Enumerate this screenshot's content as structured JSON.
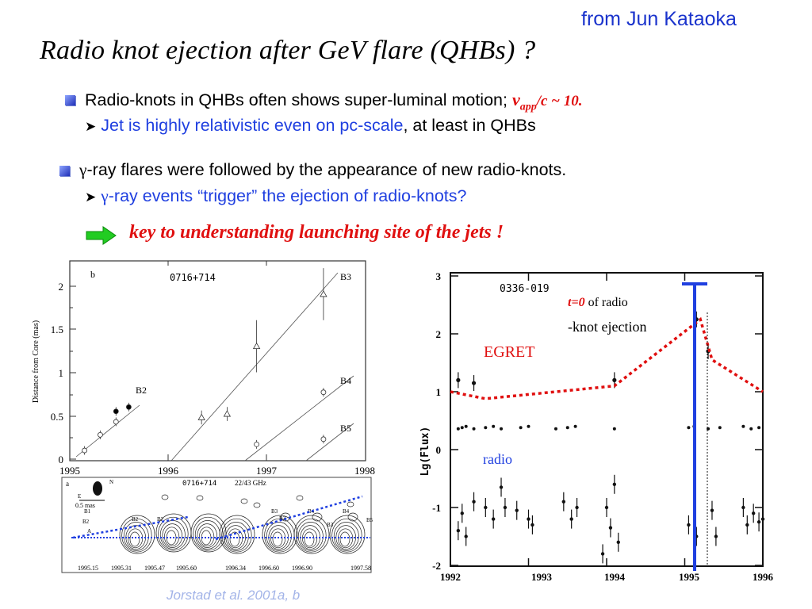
{
  "slide": {
    "credit": "from Jun Kataoka",
    "title": "Radio knot ejection after GeV flare (QHBs) ?",
    "bullet1": {
      "text": "Radio-knots in QHBs often shows super-luminal motion; ",
      "v": "v",
      "sub": "app",
      "tail": "/c ~ 10."
    },
    "sub1": {
      "arrow": "➤",
      "blue": "Jet is highly relativistic even  on pc-scale",
      "rest": ", at least in QHBs"
    },
    "bullet2": {
      "gamma": "γ",
      "text": "-ray flares were followed by the appearance of new radio-knots."
    },
    "sub2": {
      "arrow": "➤",
      "gamma": "γ",
      "text": "-ray events “trigger”  the ejection of radio-knots?"
    },
    "key": "key to understanding launching site of the jets !",
    "citation": "Jorstad et al. 2001a, b"
  },
  "left_plot": {
    "panel_label": "b",
    "source": "0716+714",
    "ylabel": "Distance from Core (mas)",
    "yticks": [
      "0",
      "0.5",
      "1",
      "1.5",
      "2"
    ],
    "xticks": [
      "1995",
      "1996",
      "1997",
      "1998"
    ],
    "knots": [
      "B2",
      "B3",
      "B4",
      "B5"
    ]
  },
  "vlbi_panel": {
    "panel_label": "a",
    "source": "0716+714",
    "freq": "22/43 GHz",
    "beam": "0.5 mas",
    "compass": [
      "N",
      "E"
    ],
    "epochs": [
      "1995.15",
      "1995.31",
      "1995.47",
      "1995.60",
      "1996.34",
      "1996.60",
      "1996.90",
      "1997.58"
    ],
    "labels": [
      "B1",
      "B2",
      "B2",
      "B2",
      "B3",
      "B3",
      "B4",
      "B3",
      "B4",
      "B5",
      "B3",
      "A"
    ]
  },
  "right_plot": {
    "source": "0336-019",
    "ylabel": "Lg(Flux)",
    "yticks": [
      "3",
      "2",
      "1",
      "0",
      "-1",
      "-2"
    ],
    "xticks": [
      "1992",
      "1993",
      "1994",
      "1995",
      "1996"
    ],
    "t0": "t=0",
    "t0_rest": " of radio",
    "knot_ej": "-knot ejection",
    "egret": "EGRET",
    "radio": "radio"
  },
  "colors": {
    "credit_blue": "#1a33cc",
    "red": "#e01010",
    "arrow_green": "#22cc22",
    "marker_blue": "#1f3fe0"
  },
  "chart_data": [
    {
      "type": "scatter",
      "title": "0716+714",
      "xlabel": "",
      "ylabel": "Distance from Core (mas)",
      "xlim": [
        1995,
        1998
      ],
      "ylim": [
        0,
        2.2
      ],
      "series": [
        {
          "name": "B2",
          "points": [
            [
              1995.15,
              0.1
            ],
            [
              1995.31,
              0.28
            ],
            [
              1995.47,
              0.43
            ],
            [
              1995.47,
              0.55
            ],
            [
              1995.6,
              0.6
            ]
          ]
        },
        {
          "name": "B3",
          "points": [
            [
              1996.34,
              0.48
            ],
            [
              1996.6,
              0.52
            ],
            [
              1996.9,
              1.3
            ],
            [
              1997.58,
              1.9
            ]
          ]
        },
        {
          "name": "B4",
          "points": [
            [
              1996.9,
              0.17
            ],
            [
              1997.58,
              0.77
            ]
          ]
        },
        {
          "name": "B5",
          "points": [
            [
              1997.58,
              0.23
            ]
          ]
        }
      ]
    },
    {
      "type": "scatter",
      "title": "0336-019",
      "xlabel": "",
      "ylabel": "Lg(Flux)",
      "xlim": [
        1992,
        1996
      ],
      "ylim": [
        -2,
        3
      ],
      "series": [
        {
          "name": "EGRET",
          "points": [
            [
              1992.0,
              1.0
            ],
            [
              1992.45,
              0.88
            ],
            [
              1994.1,
              1.1
            ],
            [
              1995.2,
              2.25
            ],
            [
              1995.35,
              1.55
            ],
            [
              1996.0,
              1.0
            ]
          ]
        }
      ]
    }
  ]
}
